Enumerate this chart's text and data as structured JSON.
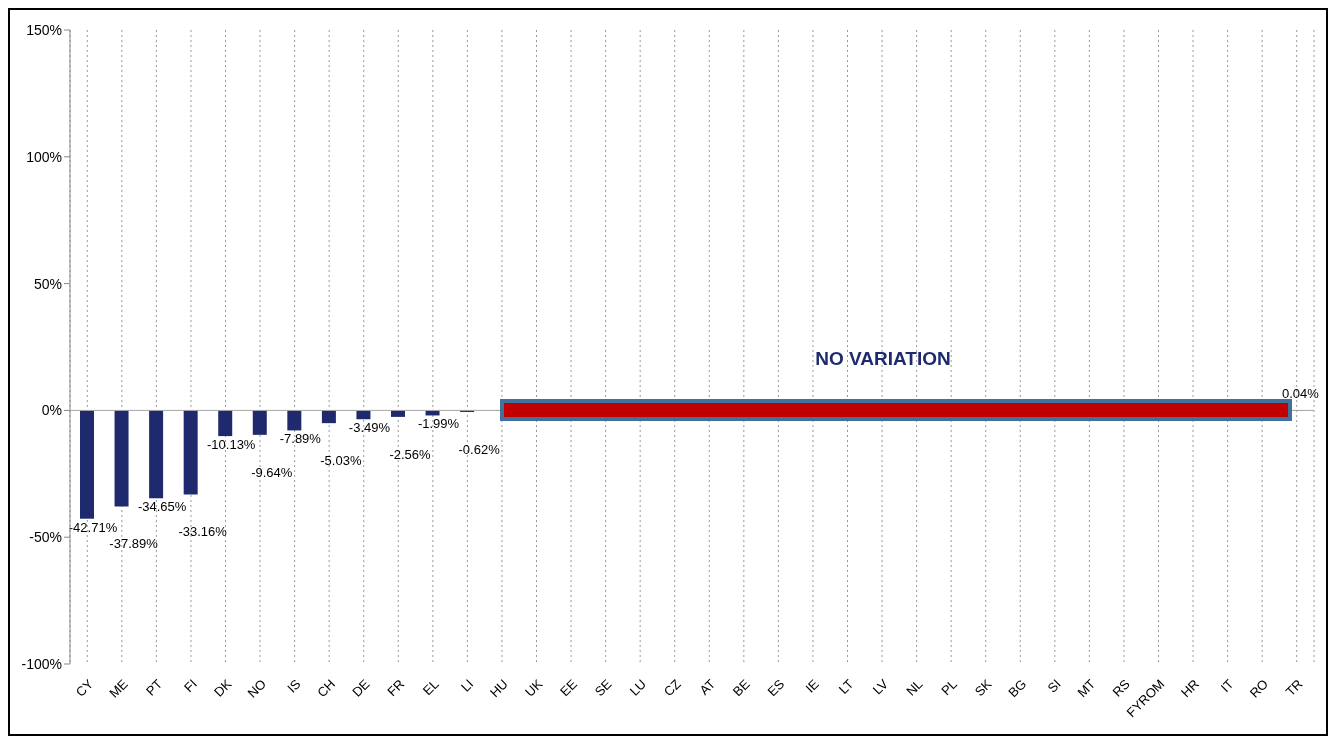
{
  "chart_data": {
    "type": "bar",
    "categories": [
      "CY",
      "ME",
      "PT",
      "FI",
      "DK",
      "NO",
      "IS",
      "CH",
      "DE",
      "FR",
      "EL",
      "LI",
      "HU",
      "UK",
      "EE",
      "SE",
      "LU",
      "CZ",
      "AT",
      "BE",
      "ES",
      "IE",
      "LT",
      "LV",
      "NL",
      "PL",
      "SK",
      "BG",
      "SI",
      "MT",
      "RS",
      "FYROM",
      "HR",
      "IT",
      "RO",
      "TR"
    ],
    "values": [
      -42.71,
      -37.89,
      -34.65,
      -33.16,
      -10.13,
      -9.64,
      -7.89,
      -5.03,
      -3.49,
      -2.56,
      -1.99,
      -0.62,
      0,
      0,
      0,
      0,
      0,
      0,
      0,
      0,
      0,
      0,
      0,
      0,
      0,
      0,
      0,
      0,
      0,
      0,
      0,
      0,
      0,
      0,
      0,
      0.04
    ],
    "value_labels": [
      "-42.71%",
      "-37.89%",
      "-34.65%",
      "-33.16%",
      "-10.13%",
      "-9.64%",
      "-7.89%",
      "-5.03%",
      "-3.49%",
      "-2.56%",
      "-1.99%",
      "-0.62%",
      null,
      null,
      null,
      null,
      null,
      null,
      null,
      null,
      null,
      null,
      null,
      null,
      null,
      null,
      null,
      null,
      null,
      null,
      null,
      null,
      null,
      null,
      null,
      "0.04%"
    ],
    "color": "#1f2a6e",
    "ylim": [
      -100,
      150
    ],
    "yticks": [
      {
        "value": -100,
        "label": "-100%"
      },
      {
        "value": -50,
        "label": "-50%"
      },
      {
        "value": 0,
        "label": "0%"
      },
      {
        "value": 50,
        "label": "50%"
      },
      {
        "value": 100,
        "label": "100%"
      },
      {
        "value": 150,
        "label": "150%"
      }
    ],
    "grid": "x",
    "ref_lines": [
      {
        "axis": "y",
        "value": 0,
        "color": "#a6a6a6"
      }
    ],
    "annotations": [
      "NO VARIATION"
    ]
  }
}
